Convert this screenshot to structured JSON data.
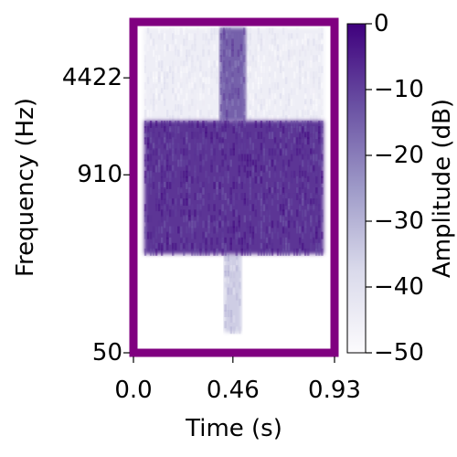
{
  "chart_data": {
    "type": "heatmap",
    "title": "",
    "xlabel": "Time (s)",
    "ylabel": "Frequency (Hz)",
    "xlim": [
      0.0,
      0.93
    ],
    "ylim": [
      50,
      11000
    ],
    "y_scale": "log",
    "x_ticks": [
      "0.0",
      "0.46",
      "0.93"
    ],
    "y_ticks": [
      "50",
      "910",
      "4422"
    ],
    "colorbar": {
      "label": "Amplitude (dB)",
      "range": [
        -50,
        0
      ],
      "ticks": [
        "0",
        "−10",
        "−20",
        "−30",
        "−40",
        "−50"
      ],
      "colormap": "Purples"
    },
    "frame_color": "#800080",
    "regions": [
      {
        "t_start": 0.05,
        "t_end": 0.88,
        "f_low": 250,
        "f_high": 2200,
        "level_db": -8
      },
      {
        "t_start": 0.4,
        "t_end": 0.52,
        "f_low": 2200,
        "f_high": 10000,
        "level_db": -15
      },
      {
        "t_start": 0.42,
        "t_end": 0.5,
        "f_low": 70,
        "f_high": 250,
        "level_db": -35
      },
      {
        "t_start": 0.05,
        "t_end": 0.88,
        "f_low": 2200,
        "f_high": 10000,
        "level_db": -45
      }
    ]
  }
}
